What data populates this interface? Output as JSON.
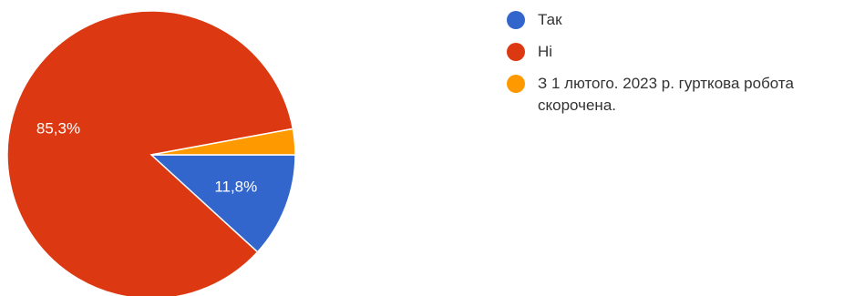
{
  "chart_data": {
    "type": "pie",
    "slices": [
      {
        "label": "Так",
        "value": 11.8,
        "display": "11,8%",
        "color": "#3366cc"
      },
      {
        "label": "Ні",
        "value": 85.3,
        "display": "85,3%",
        "color": "#dc3912"
      },
      {
        "label": "З 1 лютого. 2023 р. гурткова робота скорочена.",
        "value": 2.9,
        "display": "",
        "color": "#ff9900"
      }
    ],
    "legend_position": "right"
  }
}
